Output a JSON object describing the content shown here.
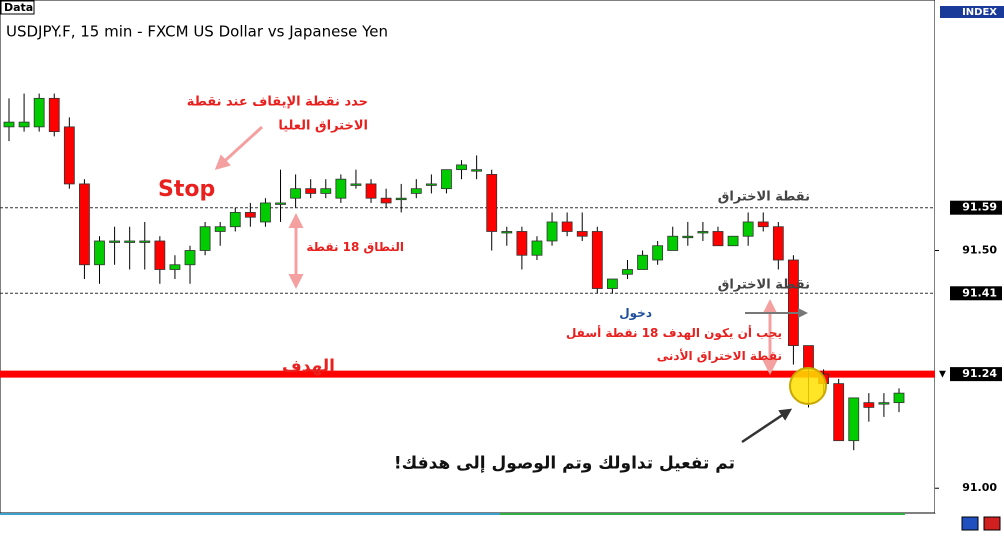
{
  "chart_data": {
    "type": "candlestick",
    "label_box": "Data",
    "title": "USDJPY.F, 15 min - FXCM US Dollar vs Japanese Yen",
    "index_label": "INDEX",
    "up_color": "#00cc00",
    "down_color": "#ff0000",
    "ylim": [
      90.95,
      92.01
    ],
    "yticks": [
      {
        "value": 91,
        "label": "91.00"
      },
      {
        "value": 91.5,
        "label": "91.50"
      }
    ],
    "levels": [
      {
        "value": 91.59,
        "label": "91.59",
        "style": "dashed"
      },
      {
        "value": 91.41,
        "label": "91.41",
        "style": "dashed"
      },
      {
        "value": 91.24,
        "label": "91.24",
        "style": "target",
        "color": "#ff0000"
      }
    ],
    "candles": [
      [
        91.76,
        91.82,
        91.73,
        91.77
      ],
      [
        91.76,
        91.83,
        91.75,
        91.77
      ],
      [
        91.76,
        91.83,
        91.75,
        91.82
      ],
      [
        91.82,
        91.83,
        91.74,
        91.75
      ],
      [
        91.76,
        91.78,
        91.63,
        91.64
      ],
      [
        91.64,
        91.65,
        91.44,
        91.47
      ],
      [
        91.47,
        91.53,
        91.43,
        91.52
      ],
      [
        91.52,
        91.55,
        91.47,
        91.52
      ],
      [
        91.52,
        91.55,
        91.46,
        91.52
      ],
      [
        91.52,
        91.56,
        91.46,
        91.52
      ],
      [
        91.52,
        91.53,
        91.43,
        91.46
      ],
      [
        91.46,
        91.49,
        91.44,
        91.47
      ],
      [
        91.47,
        91.51,
        91.43,
        91.5
      ],
      [
        91.5,
        91.56,
        91.49,
        91.55
      ],
      [
        91.54,
        91.56,
        91.51,
        91.55
      ],
      [
        91.55,
        91.59,
        91.54,
        91.58
      ],
      [
        91.58,
        91.6,
        91.55,
        91.57
      ],
      [
        91.56,
        91.61,
        91.55,
        91.6
      ],
      [
        91.6,
        91.67,
        91.56,
        91.6
      ],
      [
        91.61,
        91.66,
        91.59,
        91.63
      ],
      [
        91.63,
        91.65,
        91.61,
        91.62
      ],
      [
        91.62,
        91.65,
        91.61,
        91.63
      ],
      [
        91.61,
        91.66,
        91.6,
        91.65
      ],
      [
        91.64,
        91.67,
        91.63,
        91.64
      ],
      [
        91.64,
        91.65,
        91.6,
        91.61
      ],
      [
        91.61,
        91.63,
        91.59,
        91.6
      ],
      [
        91.61,
        91.64,
        91.58,
        91.61
      ],
      [
        91.62,
        91.65,
        91.61,
        91.63
      ],
      [
        91.64,
        91.66,
        91.62,
        91.64
      ],
      [
        91.63,
        91.67,
        91.62,
        91.67
      ],
      [
        91.67,
        91.69,
        91.65,
        91.68
      ],
      [
        91.67,
        91.7,
        91.65,
        91.67
      ],
      [
        91.66,
        91.67,
        91.5,
        91.54
      ],
      [
        91.54,
        91.55,
        91.51,
        91.54
      ],
      [
        91.54,
        91.55,
        91.46,
        91.49
      ],
      [
        91.49,
        91.53,
        91.48,
        91.52
      ],
      [
        91.52,
        91.58,
        91.51,
        91.56
      ],
      [
        91.56,
        91.58,
        91.53,
        91.54
      ],
      [
        91.54,
        91.58,
        91.52,
        91.53
      ],
      [
        91.54,
        91.55,
        91.41,
        91.42
      ],
      [
        91.42,
        91.44,
        91.41,
        91.44
      ],
      [
        91.45,
        91.48,
        91.44,
        91.46
      ],
      [
        91.46,
        91.5,
        91.46,
        91.49
      ],
      [
        91.48,
        91.52,
        91.47,
        91.51
      ],
      [
        91.5,
        91.55,
        91.5,
        91.53
      ],
      [
        91.53,
        91.56,
        91.51,
        91.53
      ],
      [
        91.54,
        91.56,
        91.52,
        91.54
      ],
      [
        91.54,
        91.55,
        91.51,
        91.51
      ],
      [
        91.51,
        91.53,
        91.51,
        91.53
      ],
      [
        91.53,
        91.58,
        91.51,
        91.56
      ],
      [
        91.56,
        91.58,
        91.54,
        91.55
      ],
      [
        91.55,
        91.56,
        91.46,
        91.48
      ],
      [
        91.48,
        91.49,
        91.26,
        91.3
      ],
      [
        91.3,
        91.3,
        91.17,
        91.25
      ],
      [
        91.24,
        91.25,
        91.2,
        91.22
      ],
      [
        91.22,
        91.23,
        91.1,
        91.1
      ],
      [
        91.1,
        91.19,
        91.08,
        91.19
      ],
      [
        91.18,
        91.2,
        91.14,
        91.17
      ],
      [
        91.18,
        91.2,
        91.15,
        91.18
      ],
      [
        91.18,
        91.21,
        91.16,
        91.2
      ]
    ],
    "annotations": [
      "حدد نقطة الإيقاف عند نقطة",
      "الاختراق العليا",
      "Stop",
      "النطاق 18 نقطة",
      "نقطة الاختراق",
      "نقطة الاختراق",
      "دخول",
      "يجب أن يكون الهدف 18 نقطة أسفل",
      "نقطة الاختراق الأدنى",
      "الهدف",
      "تم تفعيل تداولك وتم الوصول إلى هدفك!"
    ]
  }
}
